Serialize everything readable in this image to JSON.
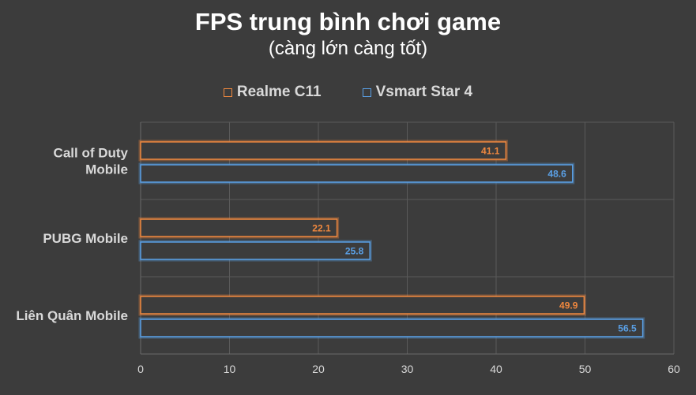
{
  "chart_data": {
    "type": "bar",
    "orientation": "horizontal",
    "title": "FPS trung bình chơi game",
    "subtitle": "(càng lớn càng tốt)",
    "categories": [
      "Call of Duty Mobile",
      "PUBG Mobile",
      "Liên Quân Mobile"
    ],
    "category_lines": [
      [
        "Call of Duty",
        "Mobile"
      ],
      [
        "PUBG Mobile"
      ],
      [
        "Liên Quân Mobile"
      ]
    ],
    "series": [
      {
        "name": "Realme C11",
        "values": [
          41.1,
          22.1,
          49.9
        ],
        "color": "#f0883e"
      },
      {
        "name": "Vsmart Star 4",
        "values": [
          48.6,
          25.8,
          56.5
        ],
        "color": "#5aa0e6"
      }
    ],
    "xlim": [
      0,
      60
    ],
    "xticks": [
      0,
      10,
      20,
      30,
      40,
      50,
      60
    ],
    "grid": true,
    "legend_position": "top"
  },
  "colors": {
    "background": "#3c3c3c",
    "gridline": "#5a5a5a",
    "text": "#d9d9d9"
  }
}
